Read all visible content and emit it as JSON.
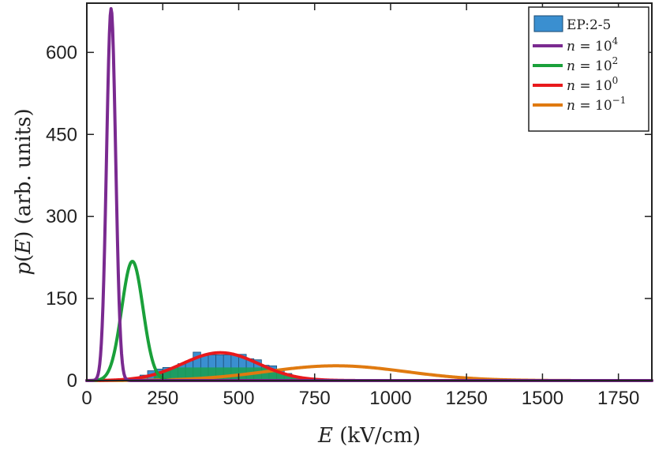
{
  "chart_data": {
    "type": "area",
    "xlabel": "E (kV/cm)",
    "ylabel": "p(E) (arb. units)",
    "xlim": [
      0,
      1860
    ],
    "ylim": [
      0,
      690
    ],
    "xticks": [
      0,
      250,
      500,
      750,
      1000,
      1250,
      1500,
      1750
    ],
    "yticks": [
      0,
      150,
      300,
      450,
      600
    ],
    "legend_position": "top-right",
    "histogram": {
      "name": "EP:2-5",
      "color": "#3a8fd0",
      "bin_width": 25,
      "bins": [
        {
          "x": 187.5,
          "y": 10
        },
        {
          "x": 212.5,
          "y": 18
        },
        {
          "x": 237.5,
          "y": 21
        },
        {
          "x": 262.5,
          "y": 24
        },
        {
          "x": 287.5,
          "y": 24
        },
        {
          "x": 312.5,
          "y": 31
        },
        {
          "x": 337.5,
          "y": 36
        },
        {
          "x": 362.5,
          "y": 52
        },
        {
          "x": 387.5,
          "y": 46
        },
        {
          "x": 412.5,
          "y": 47
        },
        {
          "x": 437.5,
          "y": 47
        },
        {
          "x": 462.5,
          "y": 47
        },
        {
          "x": 487.5,
          "y": 48
        },
        {
          "x": 512.5,
          "y": 48
        },
        {
          "x": 537.5,
          "y": 40
        },
        {
          "x": 562.5,
          "y": 38
        },
        {
          "x": 587.5,
          "y": 28
        },
        {
          "x": 612.5,
          "y": 27
        },
        {
          "x": 637.5,
          "y": 18
        },
        {
          "x": 662.5,
          "y": 13
        },
        {
          "x": 687.5,
          "y": 8
        }
      ]
    },
    "series": [
      {
        "name": "n = 10^4",
        "legend_base": "n = 10",
        "legend_exp": "4",
        "color": "#7a2a90",
        "peak_x": 80,
        "peak_y": 680,
        "sigma": 15
      },
      {
        "name": "n = 10^2",
        "legend_base": "n = 10",
        "legend_exp": "2",
        "color": "#1aa03a",
        "peak_x": 150,
        "peak_y": 218,
        "sigma": 35
      },
      {
        "name": "n = 10^0",
        "legend_base": "n = 10",
        "legend_exp": "0",
        "color": "#e8191c",
        "peak_x": 440,
        "peak_y": 51,
        "sigma": 125
      },
      {
        "name": "n = 10^-1",
        "legend_base": "n = 10",
        "legend_exp": "−1",
        "color": "#e07a10",
        "peak_x": 820,
        "peak_y": 27,
        "sigma": 230
      }
    ]
  }
}
